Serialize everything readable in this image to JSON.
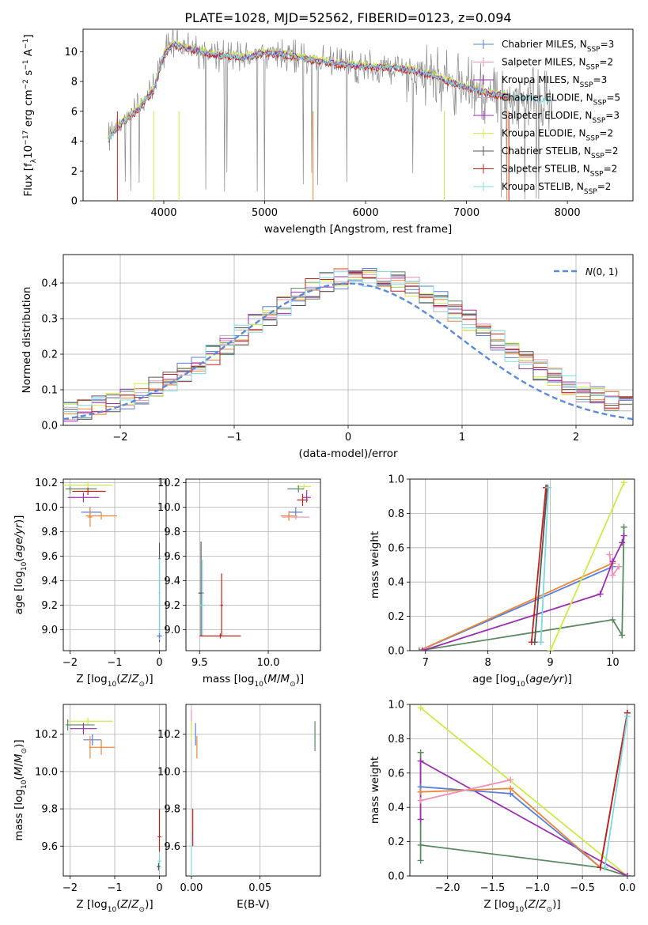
{
  "figure": {
    "title": "PLATE=1028, MJD=52562, FIBERID=0123, z=0.094"
  },
  "colors": {
    "Chabrier MILES": "#5a7fd6",
    "Salpeter MILES": "#e8873a",
    "Kroupa MILES": "#ee8fb5",
    "Chabrier ELODIE": "#5b8a60",
    "Salpeter ELODIE": "#b6b0c0",
    "Kroupa ELODIE": "#9a2fad",
    "Chabrier STELIB": "#cfe84a",
    "Salpeter STELIB": "#555555",
    "Kroupa STELIB": "#c0221c",
    "data": "#888888",
    "normal": "#5b8ad6",
    "cyan": "#7fd8e0"
  },
  "chart_data": [
    {
      "id": "spectrum",
      "type": "line",
      "xlabel": "wavelength [Angstrom, rest frame]",
      "ylabel": "Flux [fλ10⁻¹⁷ erg cm⁻² s⁻¹ A⁻¹]",
      "xlim": [
        3200,
        8650
      ],
      "ylim": [
        0,
        11.5
      ],
      "xticks": [
        4000,
        5000,
        6000,
        7000,
        8000
      ],
      "yticks": [
        0,
        2,
        4,
        6,
        8,
        10
      ],
      "legend": [
        {
          "label": "Chabrier MILES, N_SSP=3",
          "color": "#5a7fd6"
        },
        {
          "label": "Salpeter MILES, N_SSP=2",
          "color": "#ee8fb5"
        },
        {
          "label": "Kroupa MILES, N_SSP=3",
          "color": "#9a2fad"
        },
        {
          "label": "Chabrier ELODIE, N_SSP=5",
          "color": "#b6b0c0"
        },
        {
          "label": "Salpeter ELODIE, N_SSP=3",
          "color": "#9a2fad"
        },
        {
          "label": "Kroupa ELODIE, N_SSP=2",
          "color": "#cfe84a"
        },
        {
          "label": "Chabrier STELIB, N_SSP=2",
          "color": "#555555"
        },
        {
          "label": "Salpeter STELIB, N_SSP=2",
          "color": "#c0221c"
        },
        {
          "label": "Kroupa STELIB, N_SSP=2",
          "color": "#7fd8e0"
        }
      ],
      "legend_position": "top-right",
      "series_envelope": {
        "x": [
          3450,
          3500,
          3600,
          3700,
          3800,
          3900,
          4000,
          4100,
          4200,
          4300,
          4500,
          4800,
          5000,
          5200,
          5500,
          5800,
          6000,
          6300,
          6500,
          6700,
          6900,
          7100,
          7300,
          7500,
          7700,
          7850
        ],
        "y": [
          4.0,
          4.6,
          5.3,
          5.8,
          6.6,
          7.4,
          9.8,
          10.5,
          10.3,
          10.1,
          9.8,
          9.6,
          9.9,
          9.8,
          9.4,
          9.1,
          9.0,
          8.9,
          8.7,
          8.3,
          7.8,
          7.4,
          7.1,
          6.9,
          6.8,
          6.7
        ]
      }
    },
    {
      "id": "residual_hist",
      "type": "line",
      "xlabel": "(data-model)/error",
      "ylabel": "Normed distribution",
      "xlim": [
        -2.5,
        2.5
      ],
      "ylim": [
        0,
        0.48
      ],
      "xticks": [
        -2,
        -1,
        0,
        1,
        2
      ],
      "yticks": [
        0.0,
        0.1,
        0.2,
        0.3,
        0.4
      ],
      "legend": [
        {
          "label": "N(0,1)",
          "color": "#5b8ad6"
        }
      ],
      "legend_position": "top-right",
      "normal_curve": {
        "mean": 0,
        "sigma": 1
      },
      "hist_bins": 40
    },
    {
      "id": "age_vs_Z",
      "type": "scatter",
      "xlabel": "Z [log10(Z/Z⊙)]",
      "ylabel": "age  [log10(age/yr)]",
      "xlim": [
        -2.15,
        0.15
      ],
      "ylim": [
        8.83,
        10.23
      ],
      "xticks": [
        -2,
        -1,
        0
      ],
      "yticks": [
        9.0,
        9.2,
        9.4,
        9.6,
        9.8,
        10.0,
        10.2
      ],
      "points": [
        {
          "x": -1.6,
          "y": 10.18,
          "xerr": [
            0.55,
            0.55
          ],
          "yerr": [
            0.03,
            0.03
          ],
          "color": "#cfe84a"
        },
        {
          "x": -2.0,
          "y": 10.15,
          "xerr": [
            0.1,
            0.6
          ],
          "yerr": [
            0.04,
            0.02
          ],
          "color": "#5b8a60"
        },
        {
          "x": -1.6,
          "y": 10.13,
          "xerr": [
            0.35,
            0.4
          ],
          "yerr": [
            0.03,
            0.03
          ],
          "color": "#c0221c"
        },
        {
          "x": -1.7,
          "y": 10.08,
          "xerr": [
            0.35,
            0.35
          ],
          "yerr": [
            0.04,
            0.04
          ],
          "color": "#9a2fad"
        },
        {
          "x": -1.55,
          "y": 9.96,
          "xerr": [
            0.2,
            0.25
          ],
          "yerr": [
            0.04,
            0.04
          ],
          "color": "#5a7fd6"
        },
        {
          "x": -1.3,
          "y": 9.93,
          "xerr": [
            0.35,
            0.35
          ],
          "yerr": [
            0.03,
            0.03
          ],
          "color": "#e8873a"
        },
        {
          "x": -1.55,
          "y": 9.92,
          "xerr": [
            0.05,
            0.05
          ],
          "yerr": [
            0.08,
            0.08
          ],
          "color": "#e8873a"
        },
        {
          "x": 0.0,
          "y": 9.58,
          "xerr": [
            0.02,
            0.02
          ],
          "yerr": [
            0.68,
            0.13
          ],
          "color": "#555555"
        },
        {
          "x": 0.0,
          "y": 9.3,
          "xerr": [
            0.02,
            0.02
          ],
          "yerr": [
            0.38,
            0.28
          ],
          "color": "#7fd8e0"
        },
        {
          "x": 0.0,
          "y": 8.95,
          "xerr": [
            0.06,
            0.06
          ],
          "yerr": [
            0.02,
            0.02
          ],
          "color": "#5a7fd6"
        }
      ]
    },
    {
      "id": "age_vs_mass",
      "type": "scatter",
      "xlabel": "mass [log10(M/M⊙)]",
      "ylabel": "",
      "xlim": [
        9.4,
        10.38
      ],
      "ylim": [
        8.83,
        10.23
      ],
      "xticks": [
        9.5,
        10.0
      ],
      "yticks": [
        9.0,
        9.2,
        9.4,
        9.6,
        9.8,
        10.0,
        10.2
      ],
      "points": [
        {
          "x": 10.26,
          "y": 10.17,
          "xerr": [
            0.05,
            0.05
          ],
          "yerr": [
            0.02,
            0.02
          ],
          "color": "#cfe84a"
        },
        {
          "x": 10.22,
          "y": 10.15,
          "xerr": [
            0.08,
            0.04
          ],
          "yerr": [
            0.03,
            0.03
          ],
          "color": "#5b8a60"
        },
        {
          "x": 10.28,
          "y": 10.08,
          "xerr": [
            0.03,
            0.03
          ],
          "yerr": [
            0.04,
            0.06
          ],
          "color": "#9a2fad"
        },
        {
          "x": 10.25,
          "y": 10.06,
          "xerr": [
            0.04,
            0.04
          ],
          "yerr": [
            0.05,
            0.05
          ],
          "color": "#c0221c"
        },
        {
          "x": 10.2,
          "y": 9.96,
          "xerr": [
            0.05,
            0.05
          ],
          "yerr": [
            0.04,
            0.04
          ],
          "color": "#5a7fd6"
        },
        {
          "x": 10.15,
          "y": 9.93,
          "xerr": [
            0.06,
            0.06
          ],
          "yerr": [
            0.04,
            0.04
          ],
          "color": "#e8873a"
        },
        {
          "x": 10.2,
          "y": 9.92,
          "xerr": [
            0.1,
            0.1
          ],
          "yerr": [
            0.02,
            0.02
          ],
          "color": "#ee8fb5"
        },
        {
          "x": 9.51,
          "y": 9.3,
          "xerr": [
            0.02,
            0.02
          ],
          "yerr": [
            0.35,
            0.42
          ],
          "color": "#555555"
        },
        {
          "x": 9.52,
          "y": 9.2,
          "xerr": [
            0.02,
            0.02
          ],
          "yerr": [
            0.25,
            0.37
          ],
          "color": "#7fd8e0"
        },
        {
          "x": 9.65,
          "y": 8.95,
          "xerr": [
            0.15,
            0.15
          ],
          "yerr": [
            0.02,
            0.02
          ],
          "color": "#c0221c"
        },
        {
          "x": 9.66,
          "y": 9.2,
          "xerr": [
            0.01,
            0.01
          ],
          "yerr": [
            0.25,
            0.26
          ],
          "color": "#c0221c"
        }
      ]
    },
    {
      "id": "massweight_vs_age",
      "type": "line",
      "xlabel": "age  [log10(age/yr)]",
      "ylabel": "mass weight",
      "xlim": [
        6.75,
        10.35
      ],
      "ylim": [
        0,
        1.0
      ],
      "xticks": [
        7,
        8,
        9,
        10
      ],
      "yticks": [
        0.0,
        0.2,
        0.4,
        0.6,
        0.8,
        1.0
      ],
      "series": [
        {
          "color": "#5a7fd6",
          "x": [
            6.9,
            10.0
          ],
          "y": [
            0.0,
            0.49
          ]
        },
        {
          "color": "#e8873a",
          "x": [
            6.9,
            10.0
          ],
          "y": [
            0.0,
            0.51
          ]
        },
        {
          "color": "#ee8fb5",
          "x": [
            9.95,
            10.0,
            10.1
          ],
          "y": [
            0.56,
            0.44,
            0.49
          ]
        },
        {
          "color": "#5b8a60",
          "x": [
            6.9,
            10.0,
            10.15,
            10.18
          ],
          "y": [
            0.0,
            0.18,
            0.09,
            0.72
          ]
        },
        {
          "color": "#9a2fad",
          "x": [
            6.95,
            9.8,
            10.0,
            10.15,
            10.18
          ],
          "y": [
            0.0,
            0.33,
            0.52,
            0.63,
            0.67
          ]
        },
        {
          "color": "#cfe84a",
          "x": [
            9.0,
            10.18
          ],
          "y": [
            0.0,
            0.98
          ]
        },
        {
          "color": "#555555",
          "x": [
            8.75,
            8.95
          ],
          "y": [
            0.05,
            0.95
          ]
        },
        {
          "color": "#c0221c",
          "x": [
            8.7,
            8.93
          ],
          "y": [
            0.05,
            0.95
          ]
        },
        {
          "color": "#7fd8e0",
          "x": [
            8.85,
            8.97
          ],
          "y": [
            0.05,
            0.95
          ]
        }
      ]
    },
    {
      "id": "mass_vs_Z",
      "type": "scatter",
      "xlabel": "Z [log10(Z/Z⊙)]",
      "ylabel": "mass [log10(M/M⊙)]",
      "xlim": [
        -2.15,
        0.15
      ],
      "ylim": [
        9.44,
        10.36
      ],
      "xticks": [
        -2,
        -1,
        0
      ],
      "yticks": [
        9.6,
        9.8,
        10.0,
        10.2
      ],
      "points": [
        {
          "x": -1.6,
          "y": 10.27,
          "xerr": [
            0.45,
            0.55
          ],
          "yerr": [
            0.02,
            0.02
          ],
          "color": "#cfe84a"
        },
        {
          "x": -2.05,
          "y": 10.25,
          "xerr": [
            0.05,
            0.6
          ],
          "yerr": [
            0.03,
            0.03
          ],
          "color": "#5b8a60"
        },
        {
          "x": -1.7,
          "y": 10.23,
          "xerr": [
            0.3,
            0.3
          ],
          "yerr": [
            0.03,
            0.03
          ],
          "color": "#9a2fad"
        },
        {
          "x": -1.5,
          "y": 10.17,
          "xerr": [
            0.2,
            0.2
          ],
          "yerr": [
            0.03,
            0.03
          ],
          "color": "#5a7fd6"
        },
        {
          "x": -1.3,
          "y": 10.13,
          "xerr": [
            0.25,
            0.3
          ],
          "yerr": [
            0.04,
            0.04
          ],
          "color": "#e8873a"
        },
        {
          "x": -1.55,
          "y": 10.13,
          "xerr": [
            0.02,
            0.02
          ],
          "yerr": [
            0.06,
            0.06
          ],
          "color": "#e8873a"
        },
        {
          "x": 0.0,
          "y": 9.65,
          "xerr": [
            0.04,
            0.04
          ],
          "yerr": [
            0.08,
            0.15
          ],
          "color": "#c0221c"
        },
        {
          "x": 0.0,
          "y": 9.52,
          "xerr": [
            0.04,
            0.04
          ],
          "yerr": [
            0.05,
            0.05
          ],
          "color": "#7fd8e0"
        },
        {
          "x": -0.02,
          "y": 9.49,
          "xerr": [
            0.04,
            0.04
          ],
          "yerr": [
            0.02,
            0.02
          ],
          "color": "#555555"
        }
      ]
    },
    {
      "id": "mass_vs_ebv",
      "type": "scatter",
      "xlabel": "E(B-V)",
      "ylabel": "",
      "xlim": [
        -0.004,
        0.094
      ],
      "ylim": [
        9.44,
        10.36
      ],
      "xticks": [
        0.0,
        0.05
      ],
      "yticks": [
        9.6,
        9.8,
        10.0,
        10.2
      ],
      "points": [
        {
          "x": 0.0,
          "y": 10.28,
          "xerr": [
            0.0,
            0.0
          ],
          "yerr": [
            0.05,
            0.05
          ],
          "color": "#ee8fb5"
        },
        {
          "x": 0.0,
          "y": 10.22,
          "xerr": [
            0.0,
            0.0
          ],
          "yerr": [
            0.05,
            0.05
          ],
          "color": "#cfe84a"
        },
        {
          "x": 0.003,
          "y": 10.2,
          "xerr": [
            0.0,
            0.0
          ],
          "yerr": [
            0.06,
            0.06
          ],
          "color": "#5a7fd6"
        },
        {
          "x": 0.004,
          "y": 10.13,
          "xerr": [
            0.0,
            0.0
          ],
          "yerr": [
            0.06,
            0.06
          ],
          "color": "#e8873a"
        },
        {
          "x": 0.09,
          "y": 10.19,
          "xerr": [
            0.0,
            0.0
          ],
          "yerr": [
            0.08,
            0.08
          ],
          "color": "#5b8a60"
        },
        {
          "x": 0.001,
          "y": 9.7,
          "xerr": [
            0.0,
            0.0
          ],
          "yerr": [
            0.1,
            0.1
          ],
          "color": "#c0221c"
        },
        {
          "x": 0.0,
          "y": 9.55,
          "xerr": [
            0.0,
            0.0
          ],
          "yerr": [
            0.12,
            0.12
          ],
          "color": "#7fd8e0"
        }
      ]
    },
    {
      "id": "massweight_vs_Z",
      "type": "line",
      "xlabel": "Z [log10(Z/Z⊙)]",
      "ylabel": "mass weight",
      "xlim": [
        -2.42,
        0.08
      ],
      "ylim": [
        0,
        1.0
      ],
      "xticks": [
        -2.0,
        -1.5,
        -1.0,
        -0.5,
        0.0
      ],
      "yticks": [
        0.0,
        0.2,
        0.4,
        0.6,
        0.8,
        1.0
      ],
      "series": [
        {
          "color": "#cfe84a",
          "x": [
            -2.3,
            0.0
          ],
          "y": [
            0.98,
            0.0
          ]
        },
        {
          "color": "#5b8a60",
          "x": [
            -2.3,
            -2.3,
            -2.3,
            -0.3,
            0.0
          ],
          "y": [
            0.72,
            0.09,
            0.18,
            0.05,
            0.0
          ]
        },
        {
          "color": "#9a2fad",
          "x": [
            -2.3,
            -2.3,
            0.0
          ],
          "y": [
            0.33,
            0.67,
            0.0
          ]
        },
        {
          "color": "#5a7fd6",
          "x": [
            -2.3,
            -1.3,
            -0.3
          ],
          "y": [
            0.52,
            0.48,
            0.05
          ]
        },
        {
          "color": "#e8873a",
          "x": [
            -2.3,
            -1.3,
            -0.3
          ],
          "y": [
            0.49,
            0.51,
            0.05
          ]
        },
        {
          "color": "#ee8fb5",
          "x": [
            -2.3,
            -1.3
          ],
          "y": [
            0.44,
            0.56
          ]
        },
        {
          "color": "#555555",
          "x": [
            -0.3,
            0.0
          ],
          "y": [
            0.05,
            0.95
          ]
        },
        {
          "color": "#c0221c",
          "x": [
            -0.3,
            0.0
          ],
          "y": [
            0.05,
            0.95
          ]
        },
        {
          "color": "#7fd8e0",
          "x": [
            -0.25,
            0.0
          ],
          "y": [
            0.05,
            0.93
          ]
        }
      ]
    }
  ]
}
